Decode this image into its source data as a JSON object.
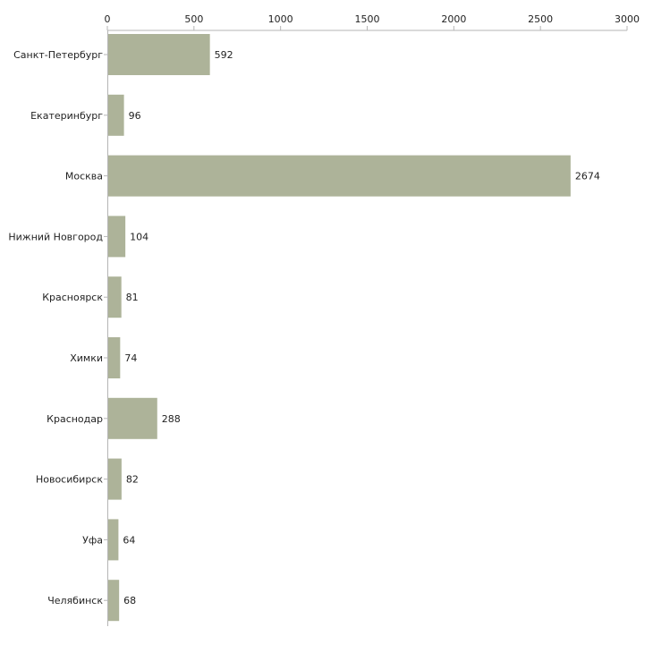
{
  "chart_data": {
    "type": "bar",
    "orientation": "horizontal",
    "title": "",
    "xlabel": "",
    "ylabel": "",
    "xlim": [
      0,
      3000
    ],
    "ticks": [
      0,
      500,
      1000,
      1500,
      2000,
      2500,
      3000
    ],
    "tick_labels": [
      "0",
      "500",
      "1000",
      "1500",
      "2000",
      "2500",
      "3000"
    ],
    "grid": false,
    "legend": "none",
    "bar_color": "#adb399",
    "categories": [
      "Санкт-Петербург",
      "Екатеринбург",
      "Москва",
      "Нижний Новгород",
      "Красноярск",
      "Химки",
      "Краснодар",
      "Новосибирск",
      "Уфа",
      "Челябинск"
    ],
    "values": [
      592,
      96,
      2674,
      104,
      81,
      74,
      288,
      82,
      64,
      68
    ],
    "value_labels": [
      "592",
      "96",
      "2674",
      "104",
      "81",
      "74",
      "288",
      "82",
      "64",
      "68"
    ]
  }
}
